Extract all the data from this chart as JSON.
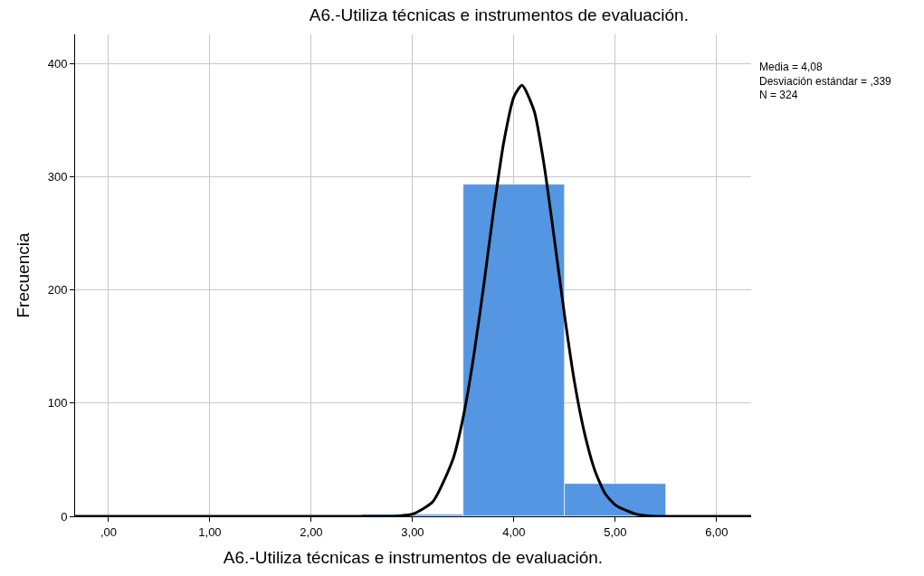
{
  "chart_data": {
    "type": "histogram",
    "title": "A6.-Utiliza técnicas e instrumentos de evaluación.",
    "xlabel": "A6.-Utiliza técnicas e instrumentos de evaluación.",
    "ylabel": "Frecuencia",
    "bins": [
      2.5,
      3.5,
      4.5,
      5.5
    ],
    "values": [
      2,
      293,
      29
    ],
    "color": "#5596e3",
    "series": [
      {
        "type": "line",
        "color": "#000000",
        "x": [
          -0.33,
          2.6,
          2.8,
          3.0,
          3.2,
          3.4,
          3.5,
          3.6,
          3.7,
          3.8,
          3.9,
          4.0,
          4.08,
          4.2,
          4.3,
          4.4,
          4.5,
          4.6,
          4.7,
          4.8,
          4.9,
          5.0,
          5.2,
          5.4,
          5.6,
          6.34
        ],
        "values": [
          0,
          0,
          0,
          2,
          13,
          51,
          88,
          140,
          203,
          271,
          331,
          371,
          381,
          358,
          309,
          244,
          177,
          117,
          72,
          40,
          20,
          10,
          2,
          0,
          0,
          0
        ]
      }
    ],
    "xlim": [
      -0.33,
      6.34
    ],
    "ylim": [
      0,
      426
    ],
    "xticks": [
      {
        "value": 0,
        "label": ",00"
      },
      {
        "value": 1,
        "label": "1,00"
      },
      {
        "value": 2,
        "label": "2,00"
      },
      {
        "value": 3,
        "label": "3,00"
      },
      {
        "value": 4,
        "label": "4,00"
      },
      {
        "value": 5,
        "label": "5,00"
      },
      {
        "value": 6,
        "label": "6,00"
      }
    ],
    "yticks": [
      0,
      100,
      200,
      300,
      400
    ],
    "grid": true,
    "annotations": [
      "Media = 4,08\nDesviación estándar = ,339\nN = 324"
    ]
  }
}
